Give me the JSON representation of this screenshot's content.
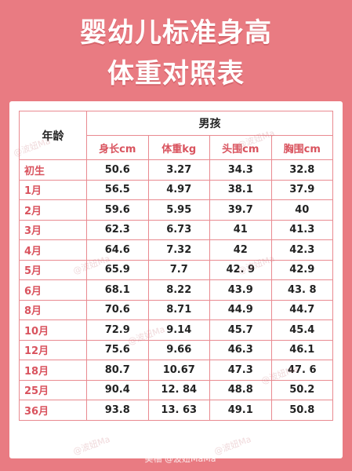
{
  "title_line1": "婴幼儿标准身高",
  "title_line2": "体重对照表",
  "table": {
    "age_header": "年龄",
    "group_header": "男孩",
    "columns": [
      "身长cm",
      "体重kg",
      "头围cm",
      "胸围cm"
    ],
    "rows": [
      {
        "age": "初生",
        "height": "50.6",
        "weight": "3.27",
        "head": "34.3",
        "chest": "32.8"
      },
      {
        "age": "1月",
        "height": "56.5",
        "weight": "4.97",
        "head": "38.1",
        "chest": "37.9"
      },
      {
        "age": "2月",
        "height": "59.6",
        "weight": "5.95",
        "head": "39.7",
        "chest": "40"
      },
      {
        "age": "3月",
        "height": "62.3",
        "weight": "6.73",
        "head": "41",
        "chest": "41.3"
      },
      {
        "age": "4月",
        "height": "64.6",
        "weight": "7.32",
        "head": "42",
        "chest": "42.3"
      },
      {
        "age": "5月",
        "height": "65.9",
        "weight": "7.7",
        "head": "42. 9",
        "chest": "42.9"
      },
      {
        "age": "6月",
        "height": "68.1",
        "weight": "8.22",
        "head": "43.9",
        "chest": "43. 8"
      },
      {
        "age": "8月",
        "height": "70.6",
        "weight": "8.71",
        "head": "44.9",
        "chest": "44.7"
      },
      {
        "age": "10月",
        "height": "72.9",
        "weight": "9.14",
        "head": "45.7",
        "chest": "45.4"
      },
      {
        "age": "12月",
        "height": "75.6",
        "weight": "9.66",
        "head": "46.3",
        "chest": "46.1"
      },
      {
        "age": "18月",
        "height": "80.7",
        "weight": "10.67",
        "head": "47.3",
        "chest": "47. 6"
      },
      {
        "age": "25月",
        "height": "90.4",
        "weight": "12. 84",
        "head": "48.8",
        "chest": "50.2"
      },
      {
        "age": "36月",
        "height": "93.8",
        "weight": "13. 63",
        "head": "49.1",
        "chest": "50.8"
      }
    ]
  },
  "watermark": "@波妞Ma",
  "footer": "美柚 @波妞MaMa"
}
